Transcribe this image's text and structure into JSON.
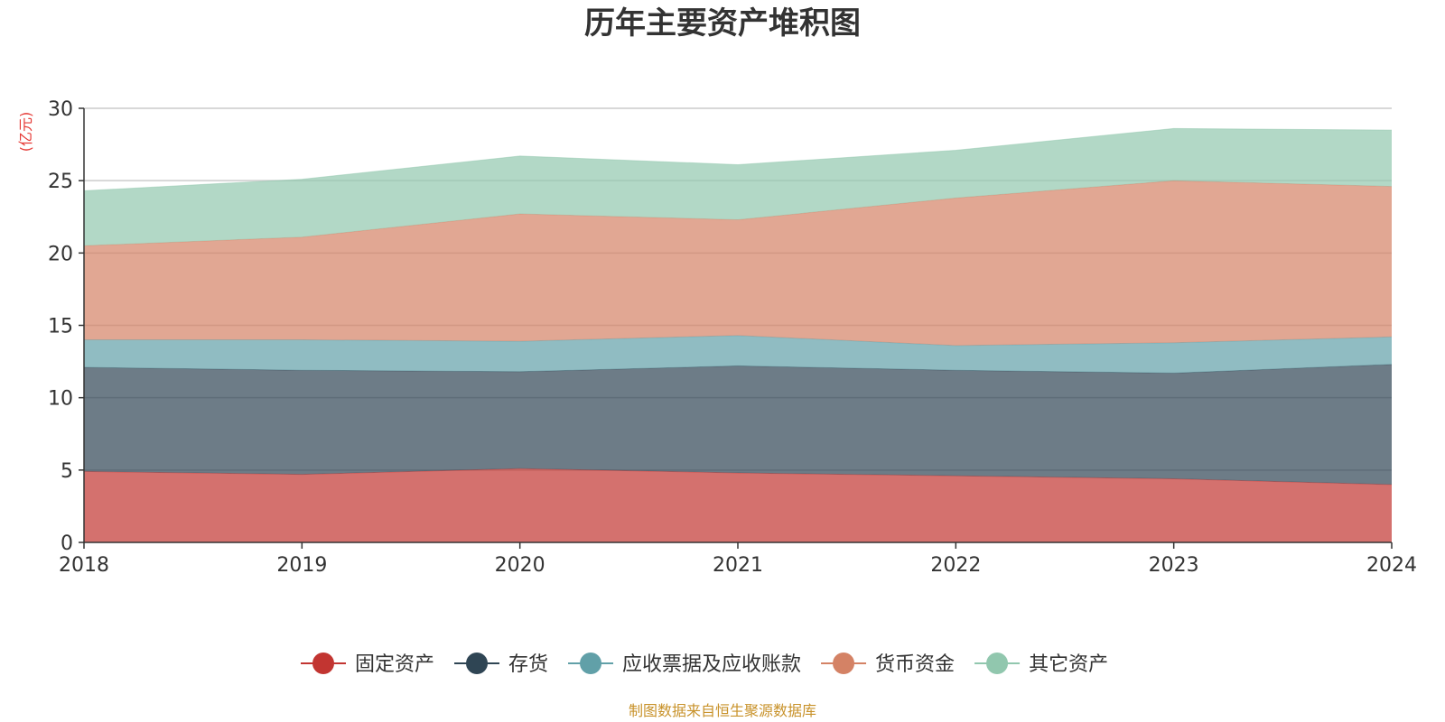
{
  "title": "历年主要资产堆积图",
  "unit_label": "(亿元)",
  "source": "制图数据来自恒生聚源数据库",
  "colors": {
    "unit": "#e53935",
    "source": "#c8922a",
    "axis": "#333333",
    "grid": "#cccccc"
  },
  "chart_data": {
    "type": "area",
    "stacked": true,
    "title": "历年主要资产堆积图",
    "ylabel": "(亿元)",
    "ylim": [
      0,
      30
    ],
    "y_ticks": [
      0,
      5,
      10,
      15,
      20,
      25,
      30
    ],
    "grid": true,
    "legend_position": "bottom",
    "categories": [
      "2018",
      "2019",
      "2020",
      "2021",
      "2022",
      "2023",
      "2024"
    ],
    "series": [
      {
        "name": "固定资产",
        "color": "#c23531",
        "values": [
          4.9,
          4.7,
          5.1,
          4.8,
          4.6,
          4.4,
          4.0
        ]
      },
      {
        "name": "存货",
        "color": "#2f4554",
        "values": [
          7.2,
          7.2,
          6.7,
          7.4,
          7.3,
          7.3,
          8.3
        ]
      },
      {
        "name": "应收票据及应收账款",
        "color": "#61a0a8",
        "values": [
          1.9,
          2.1,
          2.1,
          2.1,
          1.7,
          2.1,
          1.9
        ]
      },
      {
        "name": "货币资金",
        "color": "#d48265",
        "values": [
          6.5,
          7.1,
          8.8,
          8.0,
          10.2,
          11.2,
          10.4
        ]
      },
      {
        "name": "其它资产",
        "color": "#91c7ae",
        "values": [
          3.8,
          4.0,
          4.0,
          3.8,
          3.3,
          3.6,
          3.9
        ]
      }
    ]
  }
}
